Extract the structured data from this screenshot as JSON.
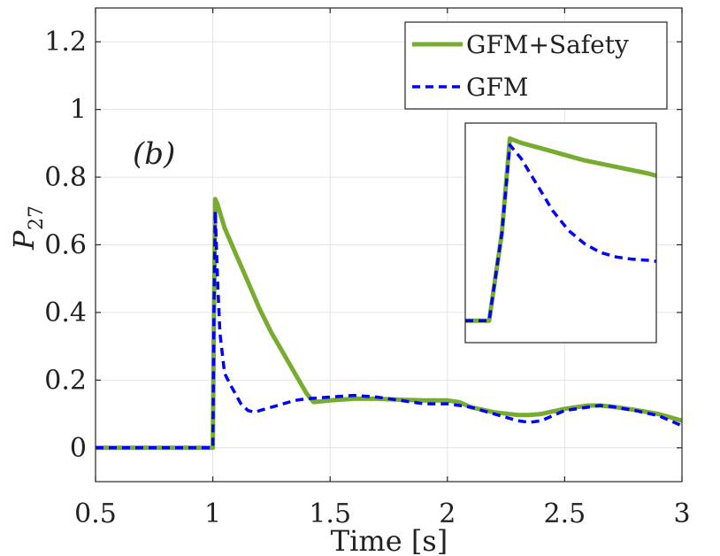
{
  "chart_data": {
    "type": "line",
    "title": "",
    "panel_label": "(b)",
    "xlabel": "Time [s]",
    "ylabel": "P",
    "ylabel_sub": "27",
    "xlim": [
      0.5,
      3.0
    ],
    "ylim": [
      -0.1,
      1.3
    ],
    "xticks": [
      0.5,
      1.0,
      1.5,
      2.0,
      2.5,
      3.0
    ],
    "xtick_labels": [
      "0.5",
      "1",
      "1.5",
      "2",
      "2.5",
      "3"
    ],
    "yticks": [
      0,
      0.2,
      0.4,
      0.6,
      0.8,
      1.0,
      1.2
    ],
    "ytick_labels": [
      "0",
      "0.2",
      "0.4",
      "0.6",
      "0.8",
      "1",
      "1.2"
    ],
    "grid": true,
    "legend_position": "top-right",
    "series": [
      {
        "name": "GFM+Safety",
        "color": "#77ac30",
        "style": "solid",
        "x": [
          0.5,
          1.0,
          1.005,
          1.01,
          1.02,
          1.05,
          1.1,
          1.15,
          1.2,
          1.25,
          1.3,
          1.35,
          1.4,
          1.43,
          1.5,
          1.6,
          1.7,
          1.8,
          1.9,
          2.0,
          2.05,
          2.1,
          2.2,
          2.3,
          2.35,
          2.4,
          2.5,
          2.6,
          2.65,
          2.7,
          2.8,
          2.9,
          3.0
        ],
        "values": [
          0,
          0,
          0.4,
          0.735,
          0.72,
          0.65,
          0.57,
          0.49,
          0.41,
          0.34,
          0.28,
          0.22,
          0.16,
          0.135,
          0.14,
          0.145,
          0.145,
          0.142,
          0.14,
          0.14,
          0.135,
          0.12,
          0.105,
          0.097,
          0.097,
          0.1,
          0.115,
          0.125,
          0.125,
          0.122,
          0.112,
          0.1,
          0.08
        ]
      },
      {
        "name": "GFM",
        "color": "#0000ff",
        "style": "dashed",
        "x": [
          0.5,
          1.0,
          1.005,
          1.01,
          1.02,
          1.03,
          1.05,
          1.08,
          1.12,
          1.15,
          1.18,
          1.2,
          1.25,
          1.3,
          1.35,
          1.4,
          1.5,
          1.6,
          1.7,
          1.8,
          1.9,
          2.0,
          2.1,
          2.2,
          2.3,
          2.35,
          2.4,
          2.5,
          2.6,
          2.65,
          2.7,
          2.8,
          2.9,
          3.0
        ],
        "values": [
          0,
          0,
          0.4,
          0.7,
          0.5,
          0.34,
          0.22,
          0.18,
          0.13,
          0.11,
          0.105,
          0.11,
          0.12,
          0.13,
          0.14,
          0.145,
          0.15,
          0.155,
          0.15,
          0.14,
          0.13,
          0.13,
          0.12,
          0.1,
          0.08,
          0.075,
          0.08,
          0.11,
          0.12,
          0.125,
          0.122,
          0.11,
          0.095,
          0.065
        ]
      }
    ],
    "inset": {
      "description": "zoom near step",
      "xlim": [
        0.985,
        1.105
      ],
      "ylim": [
        -0.1,
        0.9
      ],
      "series_x": [
        [
          0.985,
          0.995,
          1.0,
          1.008,
          1.013,
          1.02,
          1.04,
          1.06,
          1.08,
          1.1,
          1.105
        ],
        [
          0.985,
          0.995,
          1.0,
          1.008,
          1.013,
          1.02,
          1.03,
          1.04,
          1.05,
          1.06,
          1.07,
          1.08,
          1.09,
          1.1,
          1.105
        ]
      ],
      "series_values": [
        [
          0.0,
          0.0,
          0.0,
          0.4,
          0.83,
          0.81,
          0.77,
          0.73,
          0.7,
          0.67,
          0.66
        ],
        [
          0.0,
          0.0,
          0.0,
          0.4,
          0.8,
          0.74,
          0.62,
          0.5,
          0.41,
          0.35,
          0.31,
          0.29,
          0.28,
          0.275,
          0.27
        ]
      ]
    }
  }
}
